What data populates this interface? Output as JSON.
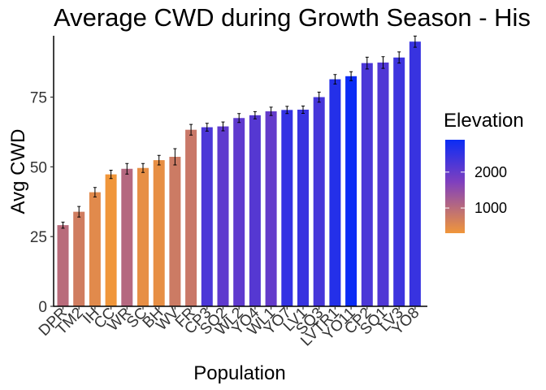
{
  "chart_data": {
    "type": "bar",
    "title": "Average CWD during Growth Season - His",
    "xlabel": "Population",
    "ylabel": "Avg CWD",
    "ylim": [
      0,
      97
    ],
    "yticks": [
      0,
      25,
      50,
      75
    ],
    "grid": false,
    "categories": [
      "DPR",
      "TM2",
      "IH",
      "CC",
      "WR",
      "SC",
      "BH",
      "WV",
      "FR",
      "CP3",
      "SQ2",
      "WL2",
      "YO4",
      "WL1",
      "YO7",
      "LV1",
      "SQ3",
      "LVTR1",
      "YO11",
      "CP2",
      "SQ1",
      "LV3",
      "YO8"
    ],
    "values": [
      29.1,
      33.9,
      40.9,
      47.3,
      49.3,
      49.6,
      52.4,
      53.6,
      63.3,
      64.2,
      64.5,
      67.5,
      68.5,
      69.9,
      70.4,
      70.5,
      75.0,
      81.4,
      82.5,
      87.2,
      87.4,
      89.2,
      94.9
    ],
    "errors": [
      1.1,
      1.9,
      1.7,
      1.5,
      1.9,
      1.6,
      1.7,
      2.9,
      1.9,
      1.4,
      1.6,
      1.6,
      1.3,
      1.5,
      1.3,
      1.3,
      1.8,
      1.7,
      1.6,
      2.1,
      2.1,
      2.0,
      2.0
    ],
    "elevation": [
      1000,
      710,
      490,
      300,
      1050,
      420,
      410,
      750,
      790,
      2250,
      2050,
      2050,
      2150,
      2000,
      2500,
      2450,
      2300,
      2650,
      2900,
      2250,
      2200,
      2400,
      2450
    ],
    "legend": {
      "title": "Elevation",
      "placement": "right",
      "ticks": [
        1000,
        2000
      ],
      "range": [
        300,
        2900
      ],
      "color_low": "#f0963a",
      "color_mid": "#7f3fbf",
      "color_high": "#0b2cf5"
    }
  }
}
